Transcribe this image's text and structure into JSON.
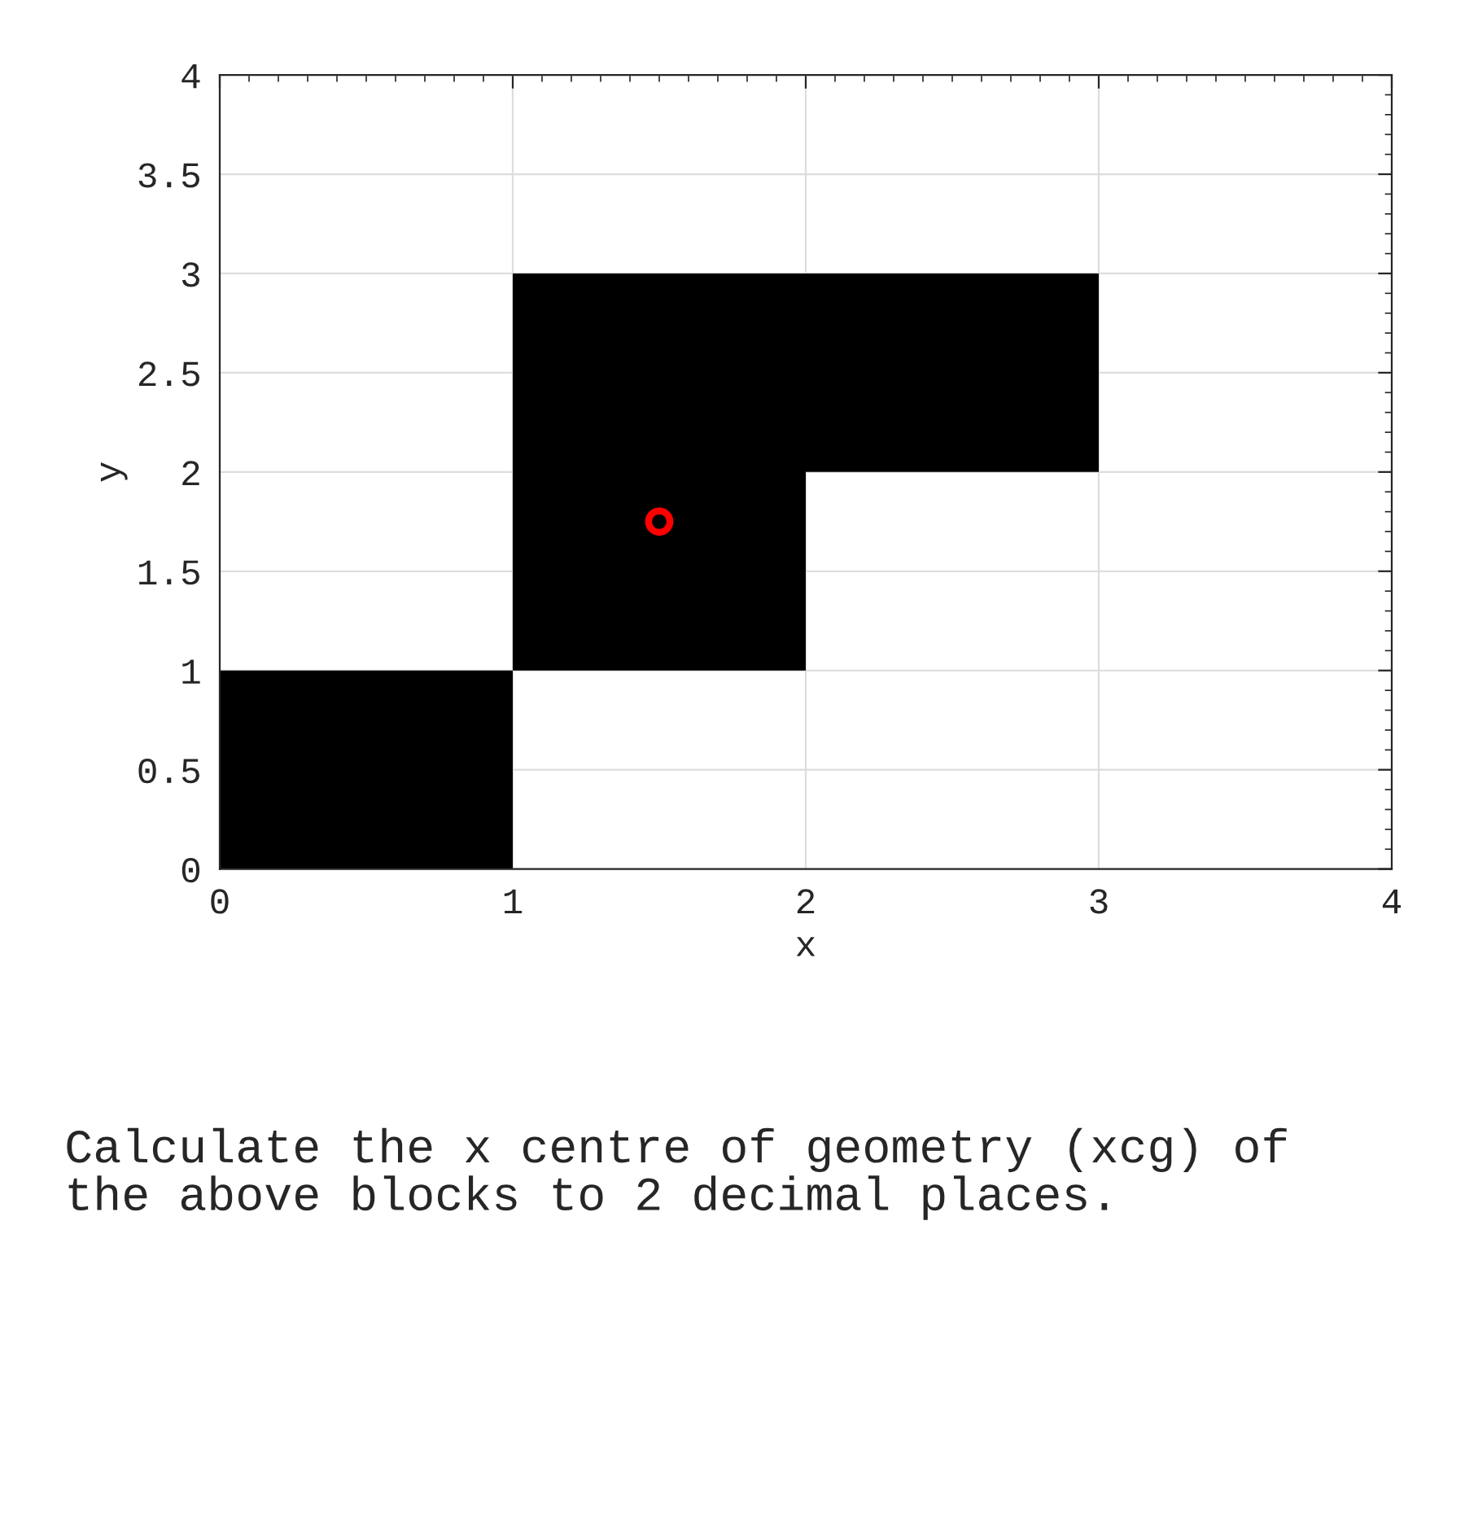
{
  "chart_data": {
    "type": "bar",
    "xlabel": "x",
    "ylabel": "y",
    "series": [
      {
        "color": "#000000",
        "x": [
          0.5,
          1.5,
          2.5
        ],
        "values": [
          1,
          2,
          1
        ],
        "base": [
          0,
          1,
          2
        ]
      },
      {
        "type": "scatter",
        "color": "#ff0000",
        "x": [
          1.5
        ],
        "values": [
          1.75
        ],
        "marker": "circle"
      }
    ],
    "xlim": [
      0,
      4
    ],
    "ylim": [
      0,
      4
    ],
    "xticks": [
      0,
      1,
      2,
      3,
      4
    ],
    "yticks": [
      0,
      0.5,
      1,
      1.5,
      2,
      2.5,
      3,
      3.5,
      4
    ],
    "grid": true,
    "legend": false,
    "annotations": [
      "Calculate the x centre of geometry (xcg) of\nthe above blocks to 2 decimal places."
    ]
  }
}
